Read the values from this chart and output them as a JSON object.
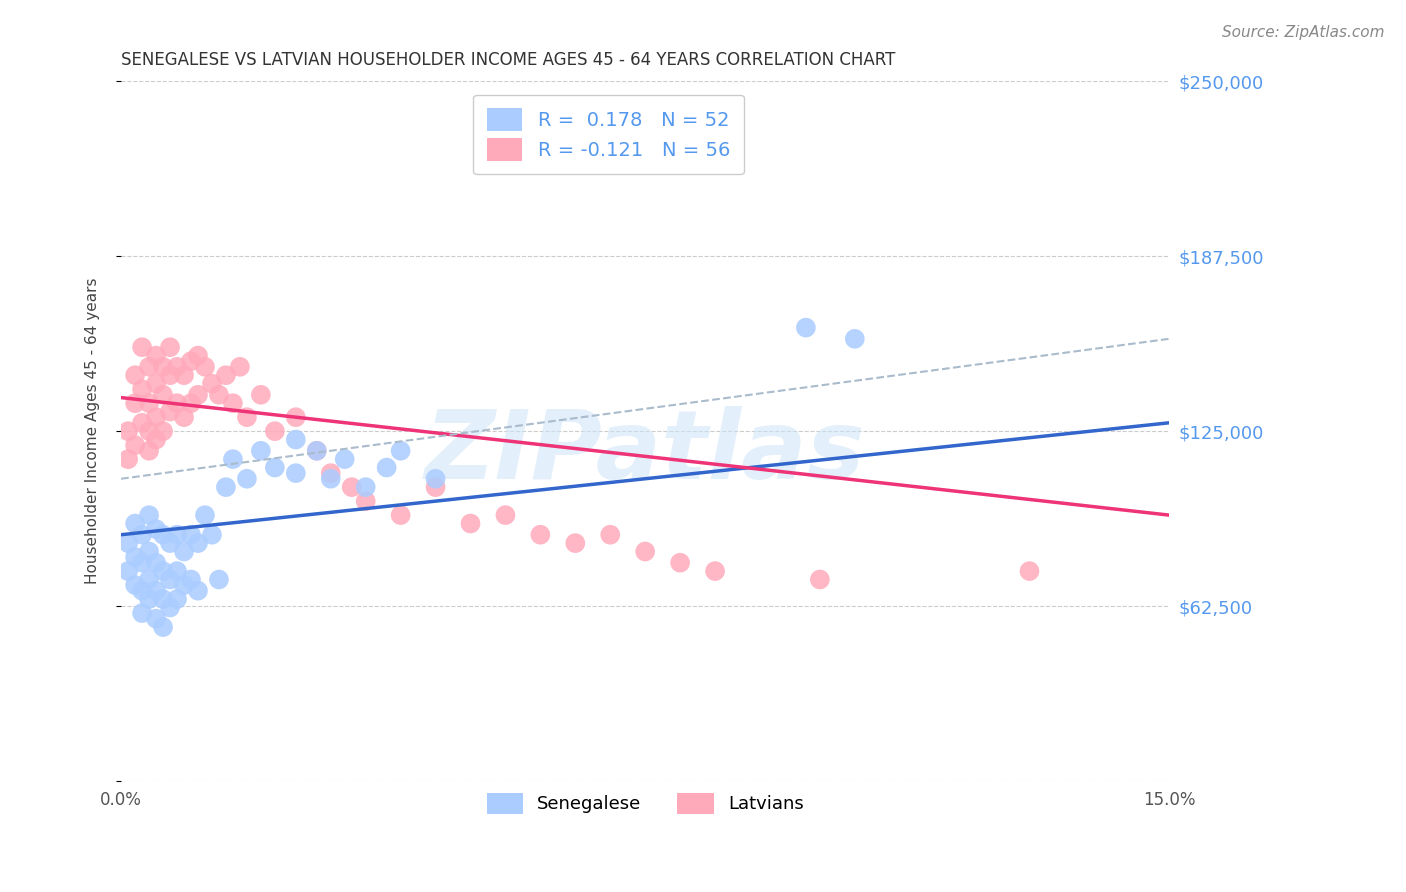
{
  "title": "SENEGALESE VS LATVIAN HOUSEHOLDER INCOME AGES 45 - 64 YEARS CORRELATION CHART",
  "source": "Source: ZipAtlas.com",
  "ylabel": "Householder Income Ages 45 - 64 years",
  "xlim": [
    0.0,
    0.15
  ],
  "ylim": [
    0,
    250000
  ],
  "yticks": [
    0,
    62500,
    125000,
    187500,
    250000
  ],
  "ytick_labels": [
    "",
    "$62,500",
    "$125,000",
    "$187,500",
    "$250,000"
  ],
  "xticks": [
    0.0,
    0.03,
    0.06,
    0.09,
    0.12,
    0.15
  ],
  "xtick_labels": [
    "0.0%",
    "",
    "",
    "",
    "",
    "15.0%"
  ],
  "watermark": "ZIPatlas",
  "legend_r1": "R =  0.178   N = 52",
  "legend_r2": "R = -0.121   N = 56",
  "senegalese_color": "#aaccff",
  "latvian_color": "#ffaabb",
  "senegalese_line_color": "#3366cc",
  "latvian_line_color": "#ee3377",
  "overall_line_color": "#aabbcc",
  "background_color": "#ffffff",
  "grid_color": "#cccccc",
  "title_color": "#333333",
  "axis_label_color": "#444444",
  "right_tick_color": "#5599ee",
  "senegalese_x": [
    0.001,
    0.001,
    0.002,
    0.002,
    0.002,
    0.003,
    0.003,
    0.003,
    0.003,
    0.004,
    0.004,
    0.004,
    0.004,
    0.005,
    0.005,
    0.005,
    0.005,
    0.006,
    0.006,
    0.006,
    0.006,
    0.007,
    0.007,
    0.007,
    0.008,
    0.008,
    0.008,
    0.009,
    0.009,
    0.01,
    0.01,
    0.011,
    0.011,
    0.012,
    0.013,
    0.014,
    0.015,
    0.016,
    0.018,
    0.02,
    0.022,
    0.025,
    0.025,
    0.028,
    0.03,
    0.032,
    0.035,
    0.038,
    0.04,
    0.045,
    0.098,
    0.105
  ],
  "senegalese_y": [
    85000,
    75000,
    92000,
    80000,
    70000,
    88000,
    78000,
    68000,
    60000,
    95000,
    82000,
    72000,
    65000,
    90000,
    78000,
    68000,
    58000,
    88000,
    75000,
    65000,
    55000,
    85000,
    72000,
    62000,
    88000,
    75000,
    65000,
    82000,
    70000,
    88000,
    72000,
    85000,
    68000,
    95000,
    88000,
    72000,
    105000,
    115000,
    108000,
    118000,
    112000,
    122000,
    110000,
    118000,
    108000,
    115000,
    105000,
    112000,
    118000,
    108000,
    162000,
    158000
  ],
  "latvian_x": [
    0.001,
    0.001,
    0.002,
    0.002,
    0.002,
    0.003,
    0.003,
    0.003,
    0.004,
    0.004,
    0.004,
    0.004,
    0.005,
    0.005,
    0.005,
    0.005,
    0.006,
    0.006,
    0.006,
    0.007,
    0.007,
    0.007,
    0.008,
    0.008,
    0.009,
    0.009,
    0.01,
    0.01,
    0.011,
    0.011,
    0.012,
    0.013,
    0.014,
    0.015,
    0.016,
    0.017,
    0.018,
    0.02,
    0.022,
    0.025,
    0.028,
    0.03,
    0.033,
    0.035,
    0.04,
    0.045,
    0.05,
    0.055,
    0.06,
    0.065,
    0.07,
    0.075,
    0.08,
    0.085,
    0.1,
    0.13
  ],
  "latvian_y": [
    125000,
    115000,
    145000,
    135000,
    120000,
    155000,
    140000,
    128000,
    148000,
    135000,
    125000,
    118000,
    152000,
    142000,
    130000,
    122000,
    148000,
    138000,
    125000,
    155000,
    145000,
    132000,
    148000,
    135000,
    145000,
    130000,
    150000,
    135000,
    152000,
    138000,
    148000,
    142000,
    138000,
    145000,
    135000,
    148000,
    130000,
    138000,
    125000,
    130000,
    118000,
    110000,
    105000,
    100000,
    95000,
    105000,
    92000,
    95000,
    88000,
    85000,
    88000,
    82000,
    78000,
    75000,
    72000,
    75000
  ],
  "sen_line_x": [
    0.0,
    0.15
  ],
  "sen_line_y": [
    88000,
    128000
  ],
  "lat_line_x": [
    0.0,
    0.15
  ],
  "lat_line_y": [
    137000,
    95000
  ],
  "overall_line_x": [
    0.0,
    0.15
  ],
  "overall_line_y": [
    108000,
    158000
  ]
}
